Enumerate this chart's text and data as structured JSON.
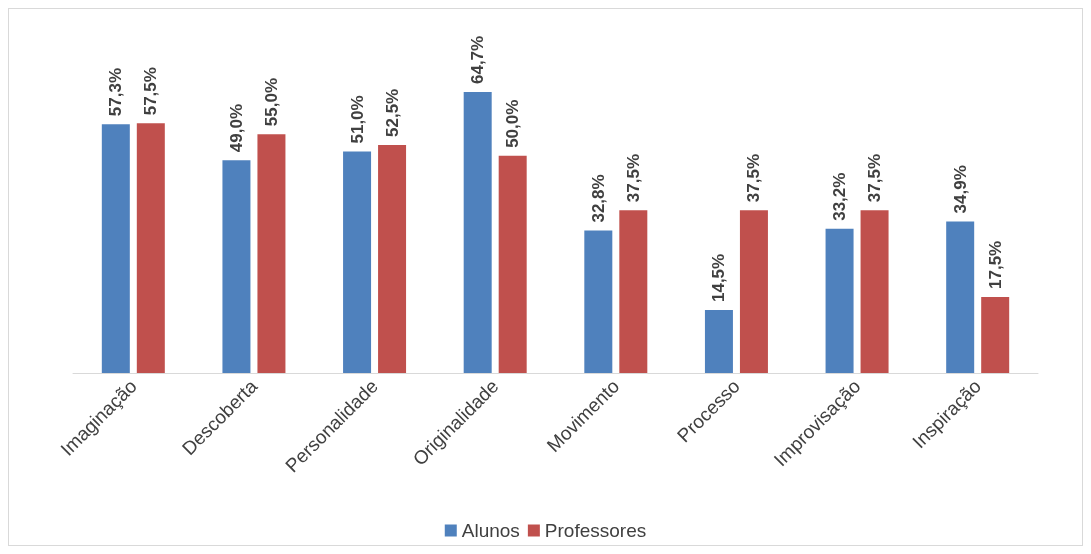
{
  "chart_data": {
    "type": "bar",
    "categories": [
      "Imaginação",
      "Descoberta",
      "Personalidade",
      "Originalidade",
      "Movimento",
      "Processo",
      "Improvisação",
      "Inspiração"
    ],
    "series": [
      {
        "name": "Alunos",
        "color": "#4f81bd",
        "values": [
          57.3,
          49.0,
          51.0,
          64.7,
          32.8,
          14.5,
          33.2,
          34.9
        ],
        "value_labels": [
          "57,3%",
          "49,0%",
          "51,0%",
          "64,7%",
          "32,8%",
          "14,5%",
          "33,2%",
          "34,9%"
        ]
      },
      {
        "name": "Professores",
        "color": "#c0504d",
        "values": [
          57.5,
          55.0,
          52.5,
          50.0,
          37.5,
          37.5,
          37.5,
          17.5
        ],
        "value_labels": [
          "57,5%",
          "55,0%",
          "52,5%",
          "50,0%",
          "37,5%",
          "37,5%",
          "37,5%",
          "17,5%"
        ]
      }
    ],
    "legend": "bottom",
    "grid": false
  }
}
